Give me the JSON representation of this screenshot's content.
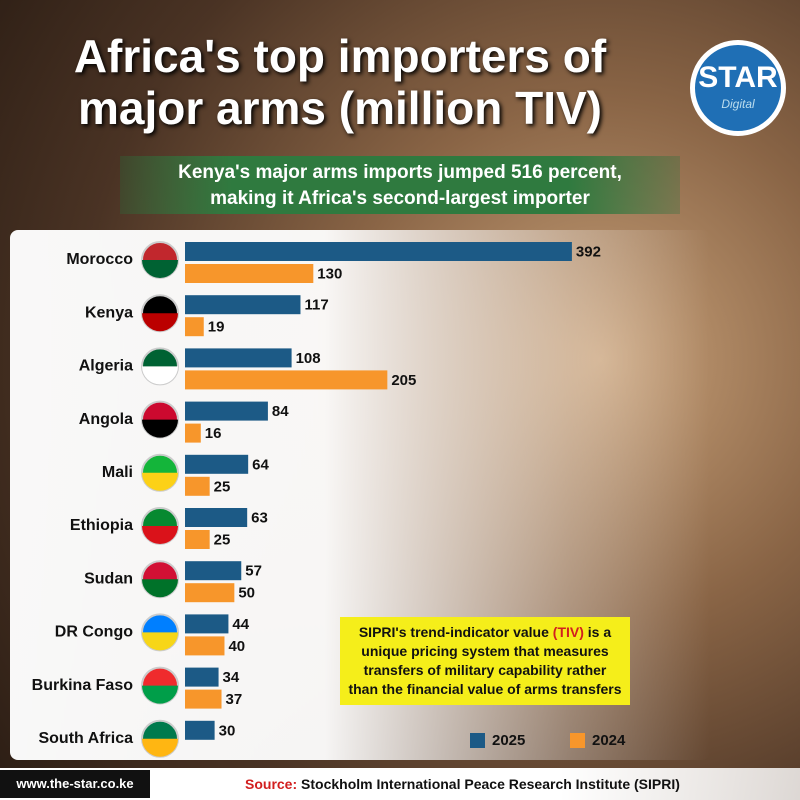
{
  "chart_data": {
    "type": "bar",
    "orientation": "horizontal",
    "title": "Africa's top importers of major arms (million TIV)",
    "subtitle": "Kenya's major arms imports jumped 516 percent, making it Africa's second-largest importer",
    "categories": [
      "Morocco",
      "Kenya",
      "Algeria",
      "Angola",
      "Mali",
      "Ethiopia",
      "Sudan",
      "DR Congo",
      "Burkina Faso",
      "South Africa"
    ],
    "series": [
      {
        "name": "2025",
        "color": "#1c5a86",
        "values": [
          392,
          117,
          108,
          84,
          64,
          63,
          57,
          44,
          34,
          30
        ]
      },
      {
        "name": "2024",
        "color": "#f7962b",
        "values": [
          130,
          19,
          205,
          16,
          25,
          25,
          50,
          40,
          37,
          null
        ]
      }
    ],
    "legend": "bottom-right",
    "note": [
      "SIPRI's trend-indicator value ",
      "(TIV)",
      " is a unique pricing system that measures transfers of military capability rather than the financial value of arms transfers"
    ],
    "source_label": "Source:",
    "source": "Stockholm International Peace Research Institute (SIPRI)"
  },
  "branding": {
    "logo": "STAR",
    "logo_sub": "Digital",
    "website": "www.the-star.co.ke"
  }
}
